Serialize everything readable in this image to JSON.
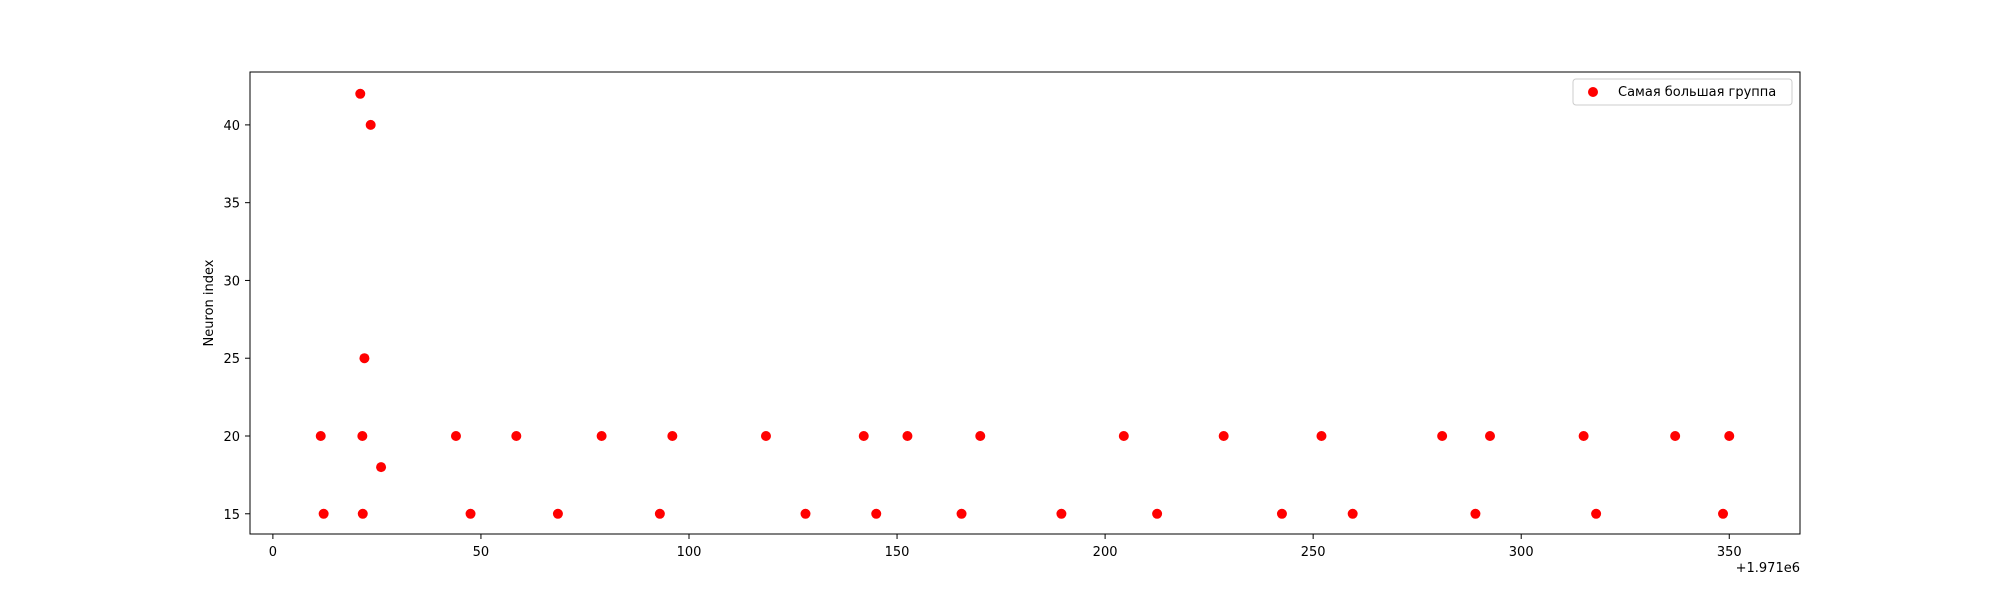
{
  "chart_data": {
    "type": "scatter",
    "title": "",
    "xlabel": "",
    "ylabel": "Neuron index",
    "x_offset_label": "+1.971e6",
    "xlim": [
      -5.5,
      367
    ],
    "ylim": [
      13.7,
      43.4
    ],
    "x_ticks": [
      0,
      50,
      100,
      150,
      200,
      250,
      300,
      350
    ],
    "y_ticks": [
      15,
      20,
      25,
      30,
      35,
      40
    ],
    "grid": false,
    "legend_position": "top-right",
    "marker_color": "#ff0000",
    "series": [
      {
        "name": "Самая большая группа",
        "points": [
          {
            "x": 11.5,
            "y": 20
          },
          {
            "x": 12.2,
            "y": 15
          },
          {
            "x": 21.0,
            "y": 42
          },
          {
            "x": 21.5,
            "y": 20
          },
          {
            "x": 21.6,
            "y": 15
          },
          {
            "x": 22.0,
            "y": 25
          },
          {
            "x": 23.5,
            "y": 40
          },
          {
            "x": 26.0,
            "y": 18
          },
          {
            "x": 44.0,
            "y": 20
          },
          {
            "x": 47.5,
            "y": 15
          },
          {
            "x": 58.5,
            "y": 20
          },
          {
            "x": 68.5,
            "y": 15
          },
          {
            "x": 79.0,
            "y": 20
          },
          {
            "x": 93.0,
            "y": 15
          },
          {
            "x": 96.0,
            "y": 20
          },
          {
            "x": 118.5,
            "y": 20
          },
          {
            "x": 128.0,
            "y": 15
          },
          {
            "x": 142.0,
            "y": 20
          },
          {
            "x": 145.0,
            "y": 15
          },
          {
            "x": 152.5,
            "y": 20
          },
          {
            "x": 165.5,
            "y": 15
          },
          {
            "x": 170.0,
            "y": 20
          },
          {
            "x": 189.5,
            "y": 15
          },
          {
            "x": 204.5,
            "y": 20
          },
          {
            "x": 212.5,
            "y": 15
          },
          {
            "x": 228.5,
            "y": 20
          },
          {
            "x": 242.5,
            "y": 15
          },
          {
            "x": 252.0,
            "y": 20
          },
          {
            "x": 259.5,
            "y": 15
          },
          {
            "x": 281.0,
            "y": 20
          },
          {
            "x": 289.0,
            "y": 15
          },
          {
            "x": 292.5,
            "y": 20
          },
          {
            "x": 315.0,
            "y": 20
          },
          {
            "x": 318.0,
            "y": 15
          },
          {
            "x": 337.0,
            "y": 20
          },
          {
            "x": 348.5,
            "y": 15
          },
          {
            "x": 350.0,
            "y": 20
          }
        ]
      }
    ]
  }
}
